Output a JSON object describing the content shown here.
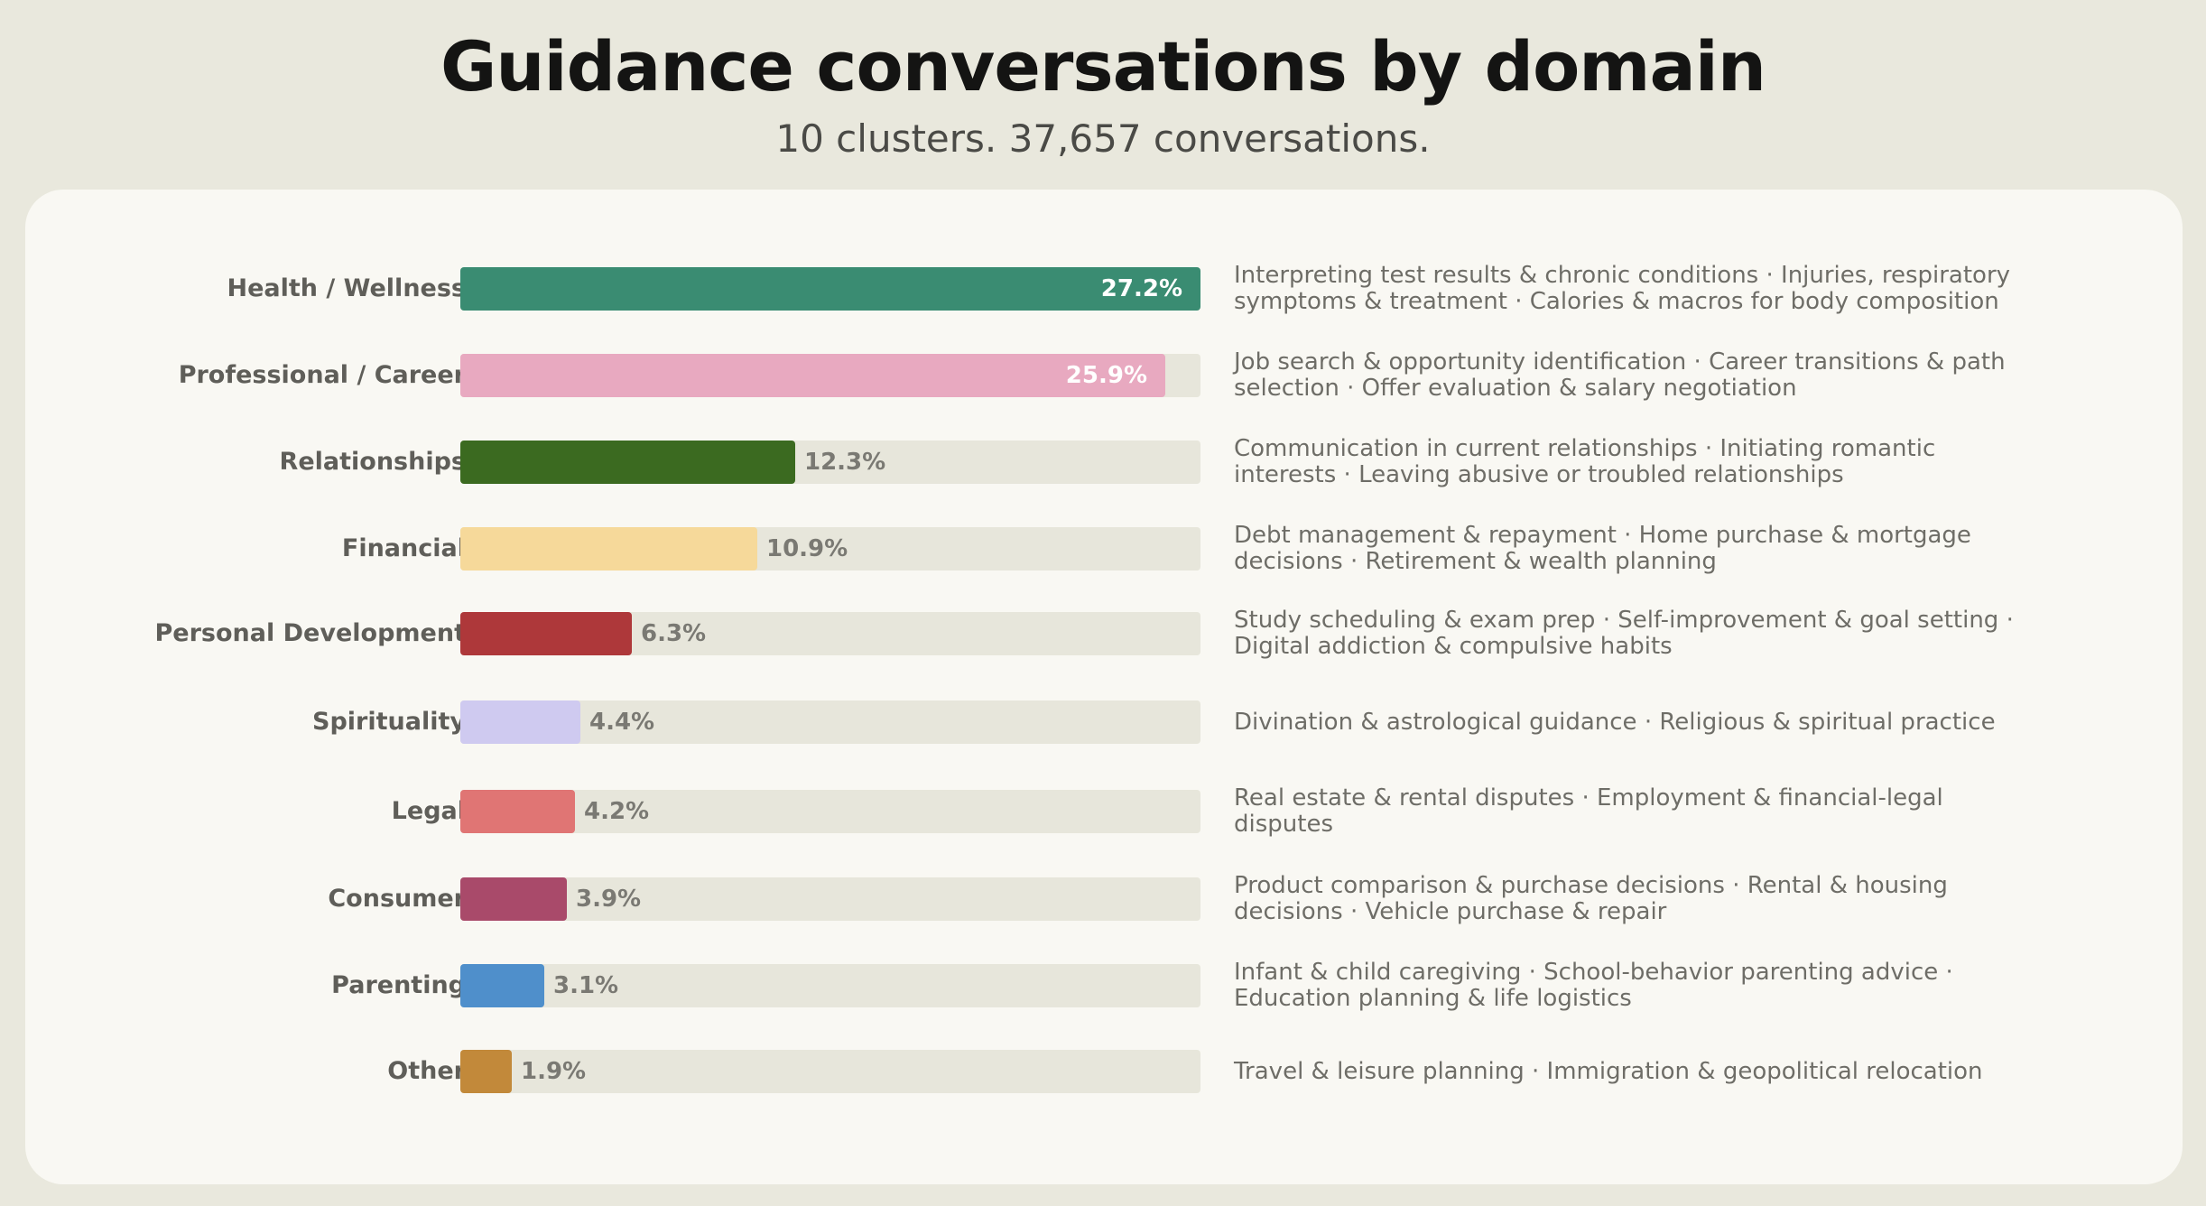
{
  "header": {
    "title": "Guidance conversations by domain",
    "subtitle": "10 clusters. 37,657 conversations."
  },
  "chart_data": {
    "type": "bar",
    "orientation": "horizontal",
    "title": "Guidance conversations by domain",
    "subtitle": "10 clusters. 37,657 conversations.",
    "xlim": [
      0,
      27.2
    ],
    "unit": "%",
    "grid": false,
    "legend": "none",
    "categories": [
      "Health / Wellness",
      "Professional / Career",
      "Relationships",
      "Financial",
      "Personal Development",
      "Spirituality",
      "Legal",
      "Consumer",
      "Parenting",
      "Other"
    ],
    "values": [
      27.2,
      25.9,
      12.3,
      10.9,
      6.3,
      4.4,
      4.2,
      3.9,
      3.1,
      1.9
    ],
    "value_labels": [
      "27.2%",
      "25.9%",
      "12.3%",
      "10.9%",
      "6.3%",
      "4.4%",
      "4.2%",
      "3.9%",
      "3.1%",
      "1.9%"
    ],
    "colors": [
      "#3a8c72",
      "#e8a9c0",
      "#3b6a20",
      "#f6d99a",
      "#ae383a",
      "#cfcaf0",
      "#e07574",
      "#a94a6a",
      "#4f8fcb",
      "#c2893a"
    ],
    "descriptions": [
      "Interpreting test results & chronic conditions · Injuries, respiratory symptoms & treatment · Calories & macros for body composition",
      "Job search & opportunity identification · Career transitions & path selection · Offer evaluation & salary negotiation",
      "Communication in current relationships · Initiating romantic interests · Leaving abusive or troubled relationships",
      "Debt management & repayment · Home purchase & mortgage decisions · Retirement & wealth planning",
      "Study scheduling & exam prep · Self-improvement & goal setting · Digital addiction & compulsive habits",
      "Divination & astrological guidance · Religious & spiritual practice",
      "Real estate & rental disputes · Employment & financial-legal disputes",
      "Product comparison & purchase decisions · Rental & housing decisions · Vehicle purchase & repair",
      "Infant & child caregiving · School-behavior parenting advice · Education planning & life logistics",
      "Travel & leisure planning · Immigration & geopolitical relocation"
    ]
  }
}
